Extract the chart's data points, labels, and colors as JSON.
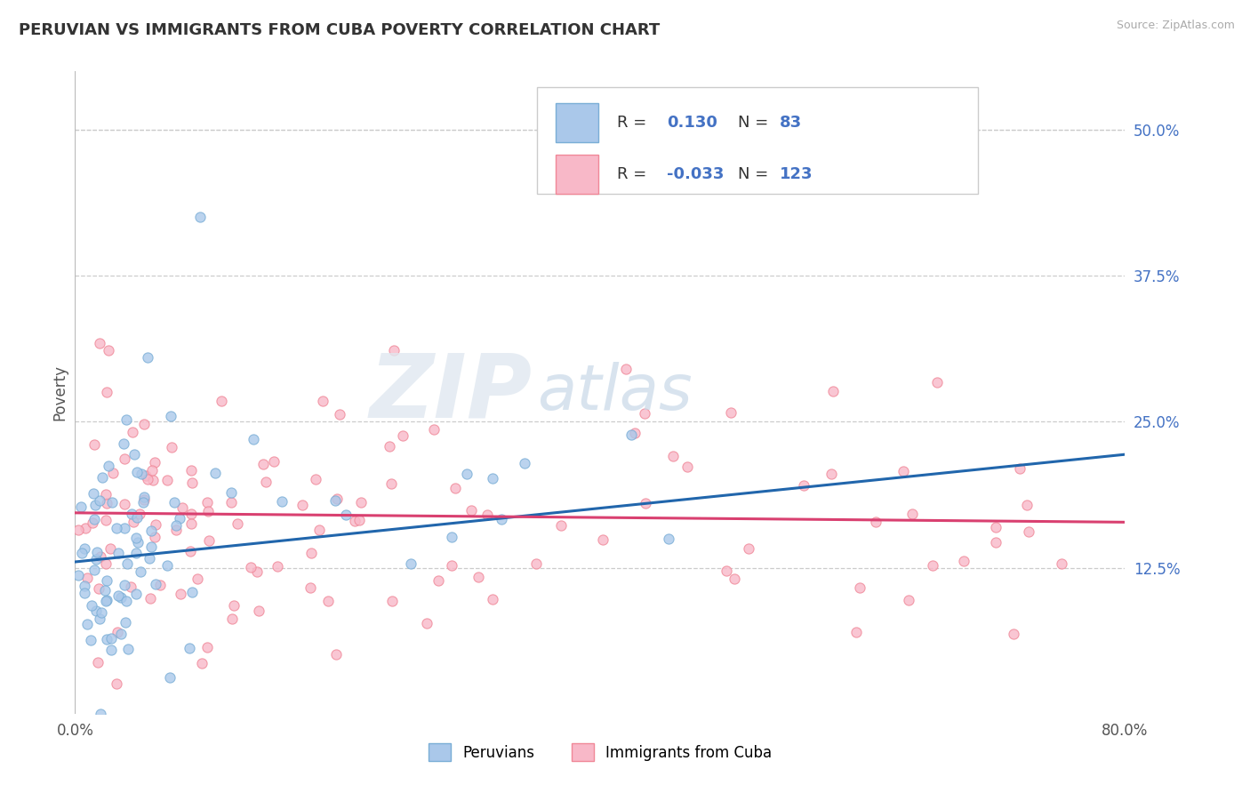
{
  "title": "PERUVIAN VS IMMIGRANTS FROM CUBA POVERTY CORRELATION CHART",
  "source_text": "Source: ZipAtlas.com",
  "ylabel": "Poverty",
  "xlim": [
    0.0,
    0.8
  ],
  "ylim": [
    0.0,
    0.55
  ],
  "xtick_positions": [
    0.0,
    0.8
  ],
  "xtick_labels": [
    "0.0%",
    "80.0%"
  ],
  "yticks_right": [
    0.125,
    0.25,
    0.375,
    0.5
  ],
  "ytick_right_labels": [
    "12.5%",
    "25.0%",
    "37.5%",
    "50.0%"
  ],
  "grid_color": "#cccccc",
  "background_color": "#ffffff",
  "blue_scatter_face": "#aac8ea",
  "blue_scatter_edge": "#7aaed6",
  "pink_scatter_face": "#f8b8c8",
  "pink_scatter_edge": "#f08898",
  "blue_line_color": "#2166ac",
  "pink_line_color": "#d94070",
  "accent_color": "#4472c4",
  "legend_R_blue": "0.130",
  "legend_N_blue": "83",
  "legend_R_pink": "-0.033",
  "legend_N_pink": "123",
  "legend_label_blue": "Peruvians",
  "legend_label_pink": "Immigrants from Cuba",
  "watermark_zip": "ZIP",
  "watermark_atlas": "atlas",
  "blue_intercept": 0.13,
  "blue_slope": 0.115,
  "pink_intercept": 0.172,
  "pink_slope": -0.01
}
